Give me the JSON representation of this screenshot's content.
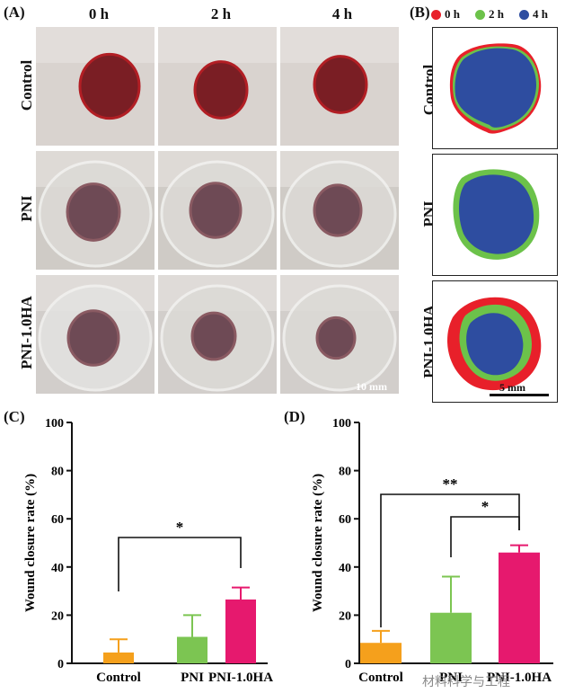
{
  "panels": {
    "A": {
      "label": "(A)",
      "columns": [
        "0 h",
        "2 h",
        "4 h"
      ],
      "rows": [
        "Control",
        "PNI",
        "PNI-1.0HA"
      ],
      "scale_bar": "10 mm"
    },
    "B": {
      "label": "(B)",
      "legend": [
        {
          "label": "0 h",
          "color": "#e8202a"
        },
        {
          "label": "2 h",
          "color": "#6cc24a"
        },
        {
          "label": "4 h",
          "color": "#2e4da0"
        }
      ],
      "rows": [
        "Control",
        "PNI",
        "PNI-1.0HA"
      ],
      "scale_bar": "5 mm"
    },
    "C": {
      "label": "(C)"
    },
    "D": {
      "label": "(D)"
    }
  },
  "colors": {
    "control": "#f5a01c",
    "pni": "#7cc552",
    "pni_ha": "#e6196e",
    "red": "#e8202a",
    "green": "#6cc24a",
    "blue": "#2e4da0"
  },
  "chart_data": [
    {
      "type": "bar",
      "panel": "C",
      "categories": [
        "Control",
        "PNI",
        "PNI-1.0HA"
      ],
      "values": [
        4.5,
        11,
        26.5
      ],
      "errors": [
        5.5,
        9,
        5
      ],
      "ylabel": "Wound closure rate (%)",
      "ylim": [
        0,
        100
      ],
      "yticks": [
        "0",
        "20",
        "40",
        "60",
        "80",
        "100"
      ],
      "significance": [
        {
          "from": "Control",
          "to": "PNI-1.0HA",
          "label": "*"
        }
      ]
    },
    {
      "type": "bar",
      "panel": "D",
      "categories": [
        "Control",
        "PNI",
        "PNI-1.0HA"
      ],
      "values": [
        8.5,
        21,
        46
      ],
      "errors": [
        5,
        15,
        3
      ],
      "ylabel": "Wound closure rate (%)",
      "ylim": [
        0,
        100
      ],
      "yticks": [
        "0",
        "20",
        "40",
        "60",
        "80",
        "100"
      ],
      "significance": [
        {
          "from": "Control",
          "to": "PNI-1.0HA",
          "label": "**"
        },
        {
          "from": "PNI",
          "to": "PNI-1.0HA",
          "label": "*"
        }
      ]
    }
  ],
  "watermark": "材料科学与工程"
}
